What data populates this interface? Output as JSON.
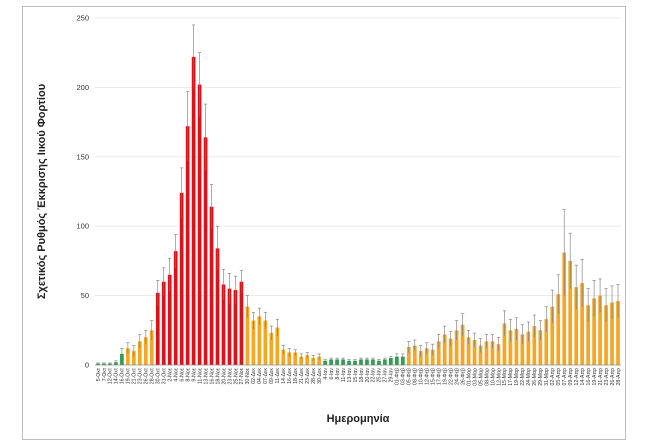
{
  "chart_data": {
    "type": "bar",
    "xlabel": "Ημερομηνία",
    "ylabel": "Σχετικός Ρυθμός Έκκρισης Ιικού Φορτίου",
    "ylim": [
      0,
      250
    ],
    "yticks": [
      0,
      50,
      100,
      150,
      200,
      250
    ],
    "grid": true,
    "legend": "none",
    "colors": {
      "green": "#2e9e4f",
      "red": "#d9131a",
      "orange": "#f5a623",
      "error": "#777777",
      "grid": "#e6e6e6"
    },
    "points": [
      {
        "label": "5-Οκτ",
        "value": 1,
        "err": 0.5,
        "color": "green"
      },
      {
        "label": "7-Οκτ",
        "value": 1,
        "err": 0.5,
        "color": "green"
      },
      {
        "label": "12-Οκτ",
        "value": 1,
        "err": 0.5,
        "color": "green"
      },
      {
        "label": "14-Οκτ",
        "value": 2,
        "err": 1,
        "color": "green"
      },
      {
        "label": "16-Οκτ",
        "value": 8,
        "err": 4,
        "color": "green"
      },
      {
        "label": "19-Οκτ",
        "value": 12,
        "err": 4,
        "color": "orange"
      },
      {
        "label": "21-Οκτ",
        "value": 10,
        "err": 4,
        "color": "orange"
      },
      {
        "label": "23-Οκτ",
        "value": 17,
        "err": 5,
        "color": "orange"
      },
      {
        "label": "26-Οκτ",
        "value": 20,
        "err": 5,
        "color": "orange"
      },
      {
        "label": "28-Οκτ",
        "value": 25,
        "err": 7,
        "color": "orange"
      },
      {
        "label": "30-Οκτ",
        "value": 52,
        "err": 9,
        "color": "red"
      },
      {
        "label": "31-Οκτ",
        "value": 60,
        "err": 10,
        "color": "red"
      },
      {
        "label": "2-Νοε",
        "value": 65,
        "err": 12,
        "color": "red"
      },
      {
        "label": "4-Νοε",
        "value": 82,
        "err": 12,
        "color": "red"
      },
      {
        "label": "6-Νοε",
        "value": 124,
        "err": 18,
        "color": "red"
      },
      {
        "label": "8-Νοε",
        "value": 172,
        "err": 25,
        "color": "red"
      },
      {
        "label": "9-Νοε",
        "value": 222,
        "err": 23,
        "color": "red"
      },
      {
        "label": "11-Νοε",
        "value": 202,
        "err": 23,
        "color": "red"
      },
      {
        "label": "13-Νοε",
        "value": 164,
        "err": 24,
        "color": "red"
      },
      {
        "label": "16-Νοε",
        "value": 114,
        "err": 16,
        "color": "red"
      },
      {
        "label": "18-Νοε",
        "value": 84,
        "err": 16,
        "color": "red"
      },
      {
        "label": "20-Νοε",
        "value": 58,
        "err": 11,
        "color": "red"
      },
      {
        "label": "23-Νοε",
        "value": 55,
        "err": 11,
        "color": "red"
      },
      {
        "label": "25-Νοε",
        "value": 54,
        "err": 10,
        "color": "red"
      },
      {
        "label": "27-Νοε",
        "value": 60,
        "err": 8,
        "color": "red"
      },
      {
        "label": "30-Νοε",
        "value": 42,
        "err": 8,
        "color": "orange"
      },
      {
        "label": "02-Δεκ",
        "value": 32,
        "err": 6,
        "color": "orange"
      },
      {
        "label": "04-Δεκ",
        "value": 35,
        "err": 6,
        "color": "orange"
      },
      {
        "label": "07-Δεκ",
        "value": 32,
        "err": 6,
        "color": "orange"
      },
      {
        "label": "09-Δεκ",
        "value": 23,
        "err": 5,
        "color": "orange"
      },
      {
        "label": "11-Δεκ",
        "value": 27,
        "err": 6,
        "color": "orange"
      },
      {
        "label": "14-Δεκ",
        "value": 11,
        "err": 3,
        "color": "orange"
      },
      {
        "label": "16-Δεκ",
        "value": 9,
        "err": 3,
        "color": "orange"
      },
      {
        "label": "18-Δεκ",
        "value": 9,
        "err": 2,
        "color": "orange"
      },
      {
        "label": "21-Δεκ",
        "value": 6,
        "err": 2,
        "color": "orange"
      },
      {
        "label": "23-Δεκ",
        "value": 7,
        "err": 2,
        "color": "orange"
      },
      {
        "label": "28-Δεκ",
        "value": 5,
        "err": 2,
        "color": "orange"
      },
      {
        "label": "30-Δεκ",
        "value": 6,
        "err": 2,
        "color": "orange"
      },
      {
        "label": "4-Ιαν",
        "value": 3,
        "err": 1,
        "color": "green"
      },
      {
        "label": "6-Ιαν",
        "value": 4,
        "err": 1,
        "color": "green"
      },
      {
        "label": "8-Ιαν",
        "value": 4,
        "err": 1,
        "color": "green"
      },
      {
        "label": "11-Ιαν",
        "value": 4,
        "err": 1,
        "color": "green"
      },
      {
        "label": "13-Ιαν",
        "value": 3,
        "err": 1,
        "color": "green"
      },
      {
        "label": "15-Ιαν",
        "value": 3,
        "err": 1,
        "color": "green"
      },
      {
        "label": "18-Ιαν",
        "value": 4,
        "err": 1,
        "color": "green"
      },
      {
        "label": "20-Ιαν",
        "value": 4,
        "err": 1,
        "color": "green"
      },
      {
        "label": "22-Ιαν",
        "value": 4,
        "err": 1,
        "color": "green"
      },
      {
        "label": "25-Ιαν",
        "value": 3,
        "err": 1,
        "color": "green"
      },
      {
        "label": "27-Ιαν",
        "value": 4,
        "err": 1,
        "color": "green"
      },
      {
        "label": "29-Ιαν",
        "value": 5,
        "err": 1,
        "color": "green"
      },
      {
        "label": "01-Φεβ",
        "value": 6,
        "err": 2,
        "color": "green"
      },
      {
        "label": "03-Φεβ",
        "value": 6,
        "err": 2,
        "color": "green"
      },
      {
        "label": "05-Φεβ",
        "value": 13,
        "err": 4,
        "color": "orange"
      },
      {
        "label": "08-Φεβ",
        "value": 14,
        "err": 4,
        "color": "orange"
      },
      {
        "label": "10-Φεβ",
        "value": 10,
        "err": 4,
        "color": "orange"
      },
      {
        "label": "12-Φεβ",
        "value": 12,
        "err": 4,
        "color": "orange"
      },
      {
        "label": "15-Φεβ",
        "value": 11,
        "err": 4,
        "color": "orange"
      },
      {
        "label": "17-Φεβ",
        "value": 17,
        "err": 5,
        "color": "orange"
      },
      {
        "label": "19-Φεβ",
        "value": 22,
        "err": 6,
        "color": "orange"
      },
      {
        "label": "22-Φεβ",
        "value": 19,
        "err": 5,
        "color": "orange"
      },
      {
        "label": "24-Φεβ",
        "value": 25,
        "err": 7,
        "color": "orange"
      },
      {
        "label": "26-Φεβ",
        "value": 29,
        "err": 8,
        "color": "orange"
      },
      {
        "label": "01-Μαρ",
        "value": 20,
        "err": 5,
        "color": "orange"
      },
      {
        "label": "03-Μαρ",
        "value": 18,
        "err": 5,
        "color": "orange"
      },
      {
        "label": "05-Μαρ",
        "value": 14,
        "err": 5,
        "color": "orange"
      },
      {
        "label": "08-Μαρ",
        "value": 17,
        "err": 5,
        "color": "orange"
      },
      {
        "label": "10-Μαρ",
        "value": 17,
        "err": 5,
        "color": "orange"
      },
      {
        "label": "12-Μαρ",
        "value": 15,
        "err": 5,
        "color": "orange"
      },
      {
        "label": "15-Μαρ",
        "value": 30,
        "err": 9,
        "color": "orange"
      },
      {
        "label": "17-Μαρ",
        "value": 25,
        "err": 8,
        "color": "orange"
      },
      {
        "label": "19-Μαρ",
        "value": 26,
        "err": 8,
        "color": "orange"
      },
      {
        "label": "22-Μαρ",
        "value": 22,
        "err": 7,
        "color": "orange"
      },
      {
        "label": "24-Μαρ",
        "value": 24,
        "err": 7,
        "color": "orange"
      },
      {
        "label": "26-Μαρ",
        "value": 28,
        "err": 8,
        "color": "orange"
      },
      {
        "label": "29-Μαρ",
        "value": 25,
        "err": 7,
        "color": "orange"
      },
      {
        "label": "31-Μαρ",
        "value": 33,
        "err": 9,
        "color": "orange"
      },
      {
        "label": "02-Απρ",
        "value": 42,
        "err": 12,
        "color": "orange"
      },
      {
        "label": "05-Απρ",
        "value": 51,
        "err": 14,
        "color": "orange"
      },
      {
        "label": "07-Απρ",
        "value": 81,
        "err": 31,
        "color": "orange"
      },
      {
        "label": "09-Απρ",
        "value": 75,
        "err": 20,
        "color": "orange"
      },
      {
        "label": "12-Απρ",
        "value": 56,
        "err": 16,
        "color": "orange"
      },
      {
        "label": "14-Απρ",
        "value": 59,
        "err": 17,
        "color": "orange"
      },
      {
        "label": "16-Απρ",
        "value": 43,
        "err": 12,
        "color": "orange"
      },
      {
        "label": "19-Απρ",
        "value": 48,
        "err": 13,
        "color": "orange"
      },
      {
        "label": "21-Απρ",
        "value": 50,
        "err": 12,
        "color": "orange"
      },
      {
        "label": "23-Απρ",
        "value": 43,
        "err": 12,
        "color": "orange"
      },
      {
        "label": "26-Απρ",
        "value": 45,
        "err": 12,
        "color": "orange"
      },
      {
        "label": "28-Απρ",
        "value": 46,
        "err": 12,
        "color": "orange"
      }
    ]
  }
}
